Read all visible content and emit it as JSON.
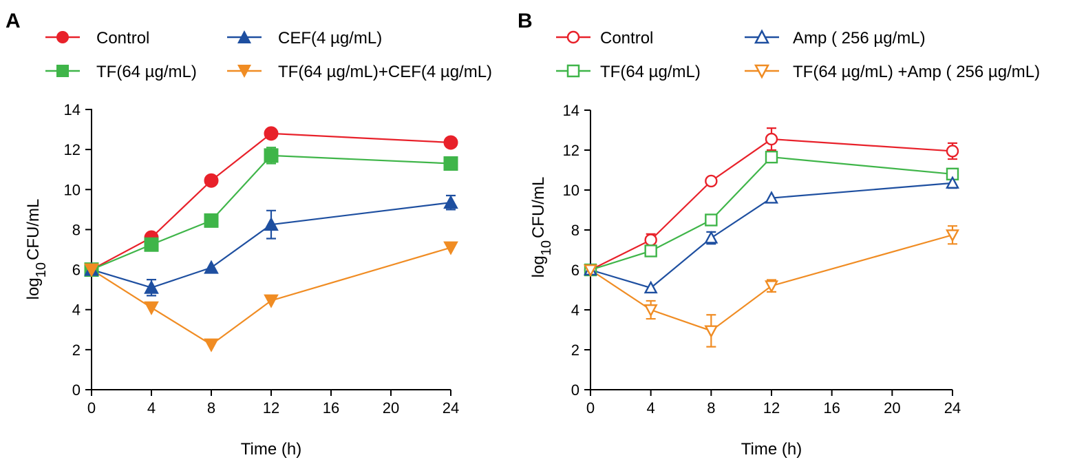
{
  "chart_data": [
    {
      "panel_label": "A",
      "type": "line",
      "xlabel": "Time (h)",
      "ylabel_main": "log",
      "ylabel_sub": "10",
      "ylabel_rest": "CFU/mL",
      "xlim": [
        0,
        24
      ],
      "ylim": [
        0,
        14
      ],
      "xticks": [
        0,
        4,
        8,
        12,
        16,
        20,
        24
      ],
      "yticks": [
        0,
        2,
        4,
        6,
        8,
        10,
        12,
        14
      ],
      "x": [
        0,
        4,
        8,
        12,
        24
      ],
      "series": [
        {
          "name": "Control",
          "color": "#e8212a",
          "marker": "circle",
          "filled": true,
          "values": [
            6.0,
            7.6,
            10.45,
            12.8,
            12.35
          ],
          "errors": [
            0.1,
            0.15,
            0.15,
            0.15,
            0.15
          ]
        },
        {
          "name": "TF(64 µg/mL)",
          "color": "#3fb549",
          "marker": "square",
          "filled": true,
          "values": [
            6.0,
            7.25,
            8.45,
            11.7,
            11.3
          ],
          "errors": [
            0.1,
            0.15,
            0.15,
            0.4,
            0.15
          ]
        },
        {
          "name": "CEF(4 µg/mL)",
          "color": "#1e4fa0",
          "marker": "triangle-up",
          "filled": true,
          "values": [
            6.0,
            5.1,
            6.1,
            8.25,
            9.35
          ],
          "errors": [
            0.1,
            0.4,
            0.15,
            0.7,
            0.35
          ]
        },
        {
          "name": "TF(64 µg/mL)+CEF(4 µg/mL)",
          "color": "#f08c23",
          "marker": "triangle-down",
          "filled": true,
          "values": [
            6.0,
            4.1,
            2.25,
            4.45,
            7.1
          ],
          "errors": [
            0.1,
            0.15,
            0.15,
            0.15,
            0.15
          ]
        }
      ]
    },
    {
      "panel_label": "B",
      "type": "line",
      "xlabel": "Time (h)",
      "ylabel_main": "log",
      "ylabel_sub": "10",
      "ylabel_rest": "CFU/mL",
      "xlim": [
        0,
        24
      ],
      "ylim": [
        0,
        14
      ],
      "xticks": [
        0,
        4,
        8,
        12,
        16,
        20,
        24
      ],
      "yticks": [
        0,
        2,
        4,
        6,
        8,
        10,
        12,
        14
      ],
      "x": [
        0,
        4,
        8,
        12,
        24
      ],
      "series": [
        {
          "name": "Control",
          "color": "#e8212a",
          "marker": "circle",
          "filled": false,
          "values": [
            6.0,
            7.5,
            10.45,
            12.55,
            11.95
          ],
          "errors": [
            0.1,
            0.3,
            0.15,
            0.55,
            0.4
          ]
        },
        {
          "name": "TF(64 µg/mL)",
          "color": "#3fb549",
          "marker": "square",
          "filled": false,
          "values": [
            6.0,
            6.95,
            8.5,
            11.65,
            10.8
          ],
          "errors": [
            0.1,
            0.15,
            0.15,
            0.15,
            0.15
          ]
        },
        {
          "name": "Amp ( 256 µg/mL)",
          "color": "#1e4fa0",
          "marker": "triangle-up",
          "filled": false,
          "values": [
            6.0,
            5.1,
            7.6,
            9.6,
            10.35
          ],
          "errors": [
            0.1,
            0.15,
            0.3,
            0.15,
            0.25
          ]
        },
        {
          "name": "TF(64 µg/mL) +Amp ( 256 µg/mL)",
          "color": "#f08c23",
          "marker": "triangle-down",
          "filled": false,
          "values": [
            6.0,
            4.0,
            2.95,
            5.2,
            7.75
          ],
          "errors": [
            0.1,
            0.45,
            0.8,
            0.3,
            0.45
          ]
        }
      ]
    }
  ]
}
